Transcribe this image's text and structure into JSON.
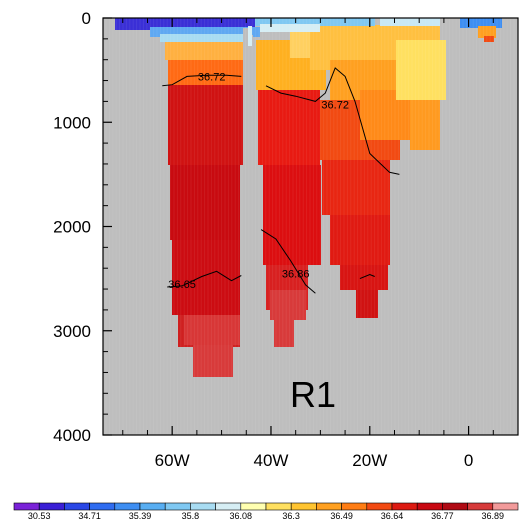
{
  "chart_data": {
    "type": "heatmap",
    "x_ticks": [
      "60W",
      "40W",
      "20W",
      "0"
    ],
    "x_tick_values": [
      -60,
      -40,
      -20,
      0
    ],
    "y_ticks": [
      "0",
      "1000",
      "2000",
      "3000",
      "4000"
    ],
    "y_tick_values": [
      0,
      1000,
      2000,
      3000,
      4000
    ],
    "xlim": [
      -74,
      10
    ],
    "ylim": [
      0,
      4000
    ],
    "y_reversed": true,
    "region_label": "R1",
    "colorbar": {
      "labels": [
        "30.53",
        "34.71",
        "35.39",
        "35.8",
        "36.08",
        "36.3",
        "36.49",
        "36.64",
        "36.77",
        "36.89"
      ],
      "colors": [
        "#7a22d8",
        "#3a1fd6",
        "#2a47e6",
        "#2f6cf0",
        "#3e8ef2",
        "#58aef2",
        "#7fc8f2",
        "#a8dcf2",
        "#d6eef4",
        "#ffffb0",
        "#ffe060",
        "#ffc430",
        "#ffa020",
        "#ff7d14",
        "#f24a12",
        "#dd1a12",
        "#c80812",
        "#b00a14",
        "#d63a3a",
        "#f29a9a"
      ]
    },
    "contours": [
      {
        "label": "36.72",
        "points": [
          [
            -62,
            650
          ],
          [
            -60,
            640
          ],
          [
            -57,
            560
          ],
          [
            -53,
            550
          ],
          [
            -49,
            550
          ],
          [
            -46,
            560
          ]
        ]
      },
      {
        "label": "36.72",
        "points": [
          [
            -41,
            650
          ],
          [
            -38,
            720
          ],
          [
            -35,
            750
          ],
          [
            -31,
            800
          ],
          [
            -29,
            720
          ],
          [
            -27,
            480
          ],
          [
            -25,
            560
          ],
          [
            -23,
            800
          ],
          [
            -20,
            1300
          ],
          [
            -16,
            1480
          ],
          [
            -14,
            1500
          ]
        ]
      },
      {
        "label": "36.65",
        "points": [
          [
            -61,
            2580
          ],
          [
            -58,
            2570
          ],
          [
            -54,
            2480
          ],
          [
            -51,
            2430
          ],
          [
            -48,
            2520
          ],
          [
            -46,
            2470
          ]
        ]
      },
      {
        "label": "36.86",
        "points": [
          [
            -42,
            2030
          ],
          [
            -39,
            2120
          ],
          [
            -36,
            2330
          ],
          [
            -33,
            2560
          ],
          [
            -31,
            2640
          ]
        ]
      },
      {
        "label": "",
        "points": [
          [
            -22,
            2500
          ],
          [
            -20,
            2460
          ],
          [
            -19,
            2480
          ]
        ]
      }
    ]
  }
}
